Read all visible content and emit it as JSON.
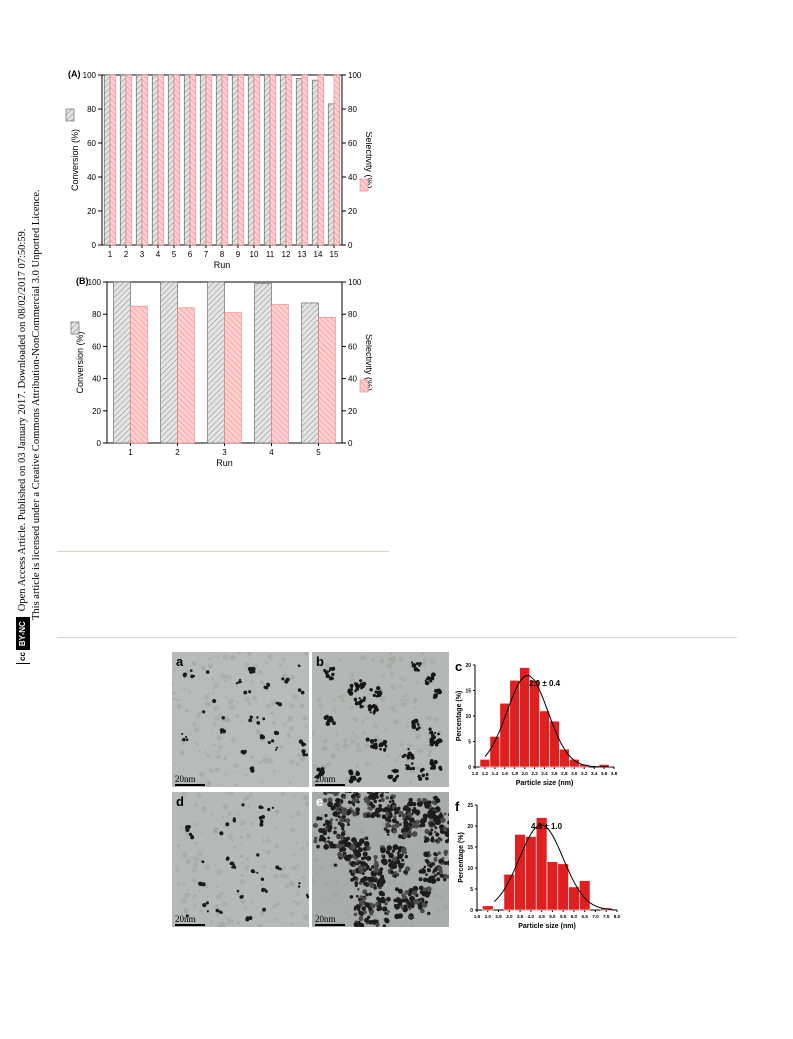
{
  "sidebar": {
    "line1": "Open Access Article. Published on 03 January 2017. Downloaded on 08/02/2017 07:50:59.",
    "line2": "This article is licensed under a Creative Commons Attribution-NonCommercial 3.0 Unported Licence.",
    "badge_cc": "cc",
    "badge_text": "BY-NC"
  },
  "chart_data": [
    {
      "type": "bar",
      "panel_label": "(A)",
      "categories": [
        "1",
        "2",
        "3",
        "4",
        "5",
        "6",
        "7",
        "8",
        "9",
        "10",
        "11",
        "12",
        "13",
        "14",
        "15"
      ],
      "series": [
        {
          "values": [
            100,
            100,
            100,
            100,
            100,
            100,
            100,
            100,
            100,
            100,
            100,
            100,
            98,
            97,
            83
          ],
          "color": "#d9d9d9",
          "pattern": "diagonal-hatch-gray"
        },
        {
          "values": [
            100,
            100,
            100,
            100,
            100,
            100,
            100,
            100,
            100,
            100,
            100,
            100,
            100,
            100,
            100
          ],
          "color": "#ffb3b3",
          "pattern": "diagonal-hatch-red"
        }
      ],
      "xlabel": "Run",
      "ylabel_left": "Conversion (%)",
      "ylabel_right": "Selectivity (%)",
      "ylim": [
        0,
        100
      ],
      "yticks": [
        0,
        20,
        40,
        60,
        80,
        100
      ]
    },
    {
      "type": "bar",
      "panel_label": "(B)",
      "categories": [
        "1",
        "2",
        "3",
        "4",
        "5"
      ],
      "series": [
        {
          "values": [
            100,
            100,
            100,
            99,
            87
          ],
          "color": "#d9d9d9",
          "pattern": "diagonal-hatch-gray"
        },
        {
          "values": [
            85,
            84,
            81,
            86,
            78
          ],
          "color": "#ffb3b3",
          "pattern": "diagonal-hatch-red"
        }
      ],
      "xlabel": "Run",
      "ylabel_left": "Conversion (%)",
      "ylabel_right": "Selectivity (%)",
      "ylim": [
        0,
        100
      ],
      "yticks": [
        0,
        20,
        40,
        60,
        80,
        100
      ]
    },
    {
      "type": "bar",
      "panel_label": "c",
      "categories": [
        "1.2",
        "1.4",
        "1.6",
        "1.8",
        "2.0",
        "2.2",
        "2.4",
        "2.6",
        "2.8",
        "3.0",
        "3.2",
        "3.4",
        "3.6"
      ],
      "x_bins": [
        1.2,
        1.4,
        1.6,
        1.8,
        2.0,
        2.2,
        2.4,
        2.6,
        2.8,
        3.0,
        3.2,
        3.4,
        3.6
      ],
      "values": [
        1.5,
        6,
        12.5,
        17,
        19.5,
        17,
        11,
        9,
        3.5,
        1.5,
        0.5,
        0,
        0.5
      ],
      "fit": "gaussian",
      "annotation": "2.0 ± 0.4",
      "xlabel": "Particle size (nm)",
      "ylabel": "Percentage (%)",
      "xticks": [
        "1.0",
        "1.2",
        "1.4",
        "1.6",
        "1.8",
        "2.0",
        "2.2",
        "2.4",
        "2.6",
        "2.8",
        "3.0",
        "3.2",
        "3.4",
        "3.6",
        "3.8"
      ],
      "yticks": [
        "0",
        "5",
        "10",
        "15",
        "20"
      ],
      "ylim": [
        0,
        20
      ],
      "color": "#e02020"
    },
    {
      "type": "bar",
      "panel_label": "f",
      "categories": [
        "2.0",
        "2.5",
        "3.0",
        "3.5",
        "4.0",
        "4.5",
        "5.0",
        "5.5",
        "6.0",
        "6.5",
        "7.0",
        "7.5"
      ],
      "x_bins": [
        2.0,
        2.5,
        3.0,
        3.5,
        4.0,
        4.5,
        5.0,
        5.5,
        6.0,
        6.5,
        7.0,
        7.5
      ],
      "values": [
        1,
        0,
        8.5,
        18,
        17.5,
        22,
        11.5,
        11,
        5.5,
        7,
        0,
        0.5
      ],
      "fit": "gaussian",
      "annotation": "4.3 ± 1.0",
      "xlabel": "Particle size (nm)",
      "ylabel": "Percentage (%)",
      "xticks": [
        "1.5",
        "2.0",
        "2.5",
        "3.0",
        "3.5",
        "4.0",
        "4.5",
        "5.0",
        "5.5",
        "6.0",
        "6.5",
        "7.0",
        "7.5",
        "8.0"
      ],
      "yticks": [
        "0",
        "5",
        "10",
        "15",
        "20",
        "25"
      ],
      "ylim": [
        0,
        25
      ],
      "color": "#e02020"
    }
  ],
  "tem_panels": [
    {
      "label": "a",
      "scale": "20nm",
      "style": "sparse"
    },
    {
      "label": "b",
      "scale": "20nm",
      "style": "clustered"
    },
    {
      "label": "d",
      "scale": "20nm",
      "style": "sparse"
    },
    {
      "label": "e",
      "scale": "20nm",
      "style": "dense"
    }
  ]
}
